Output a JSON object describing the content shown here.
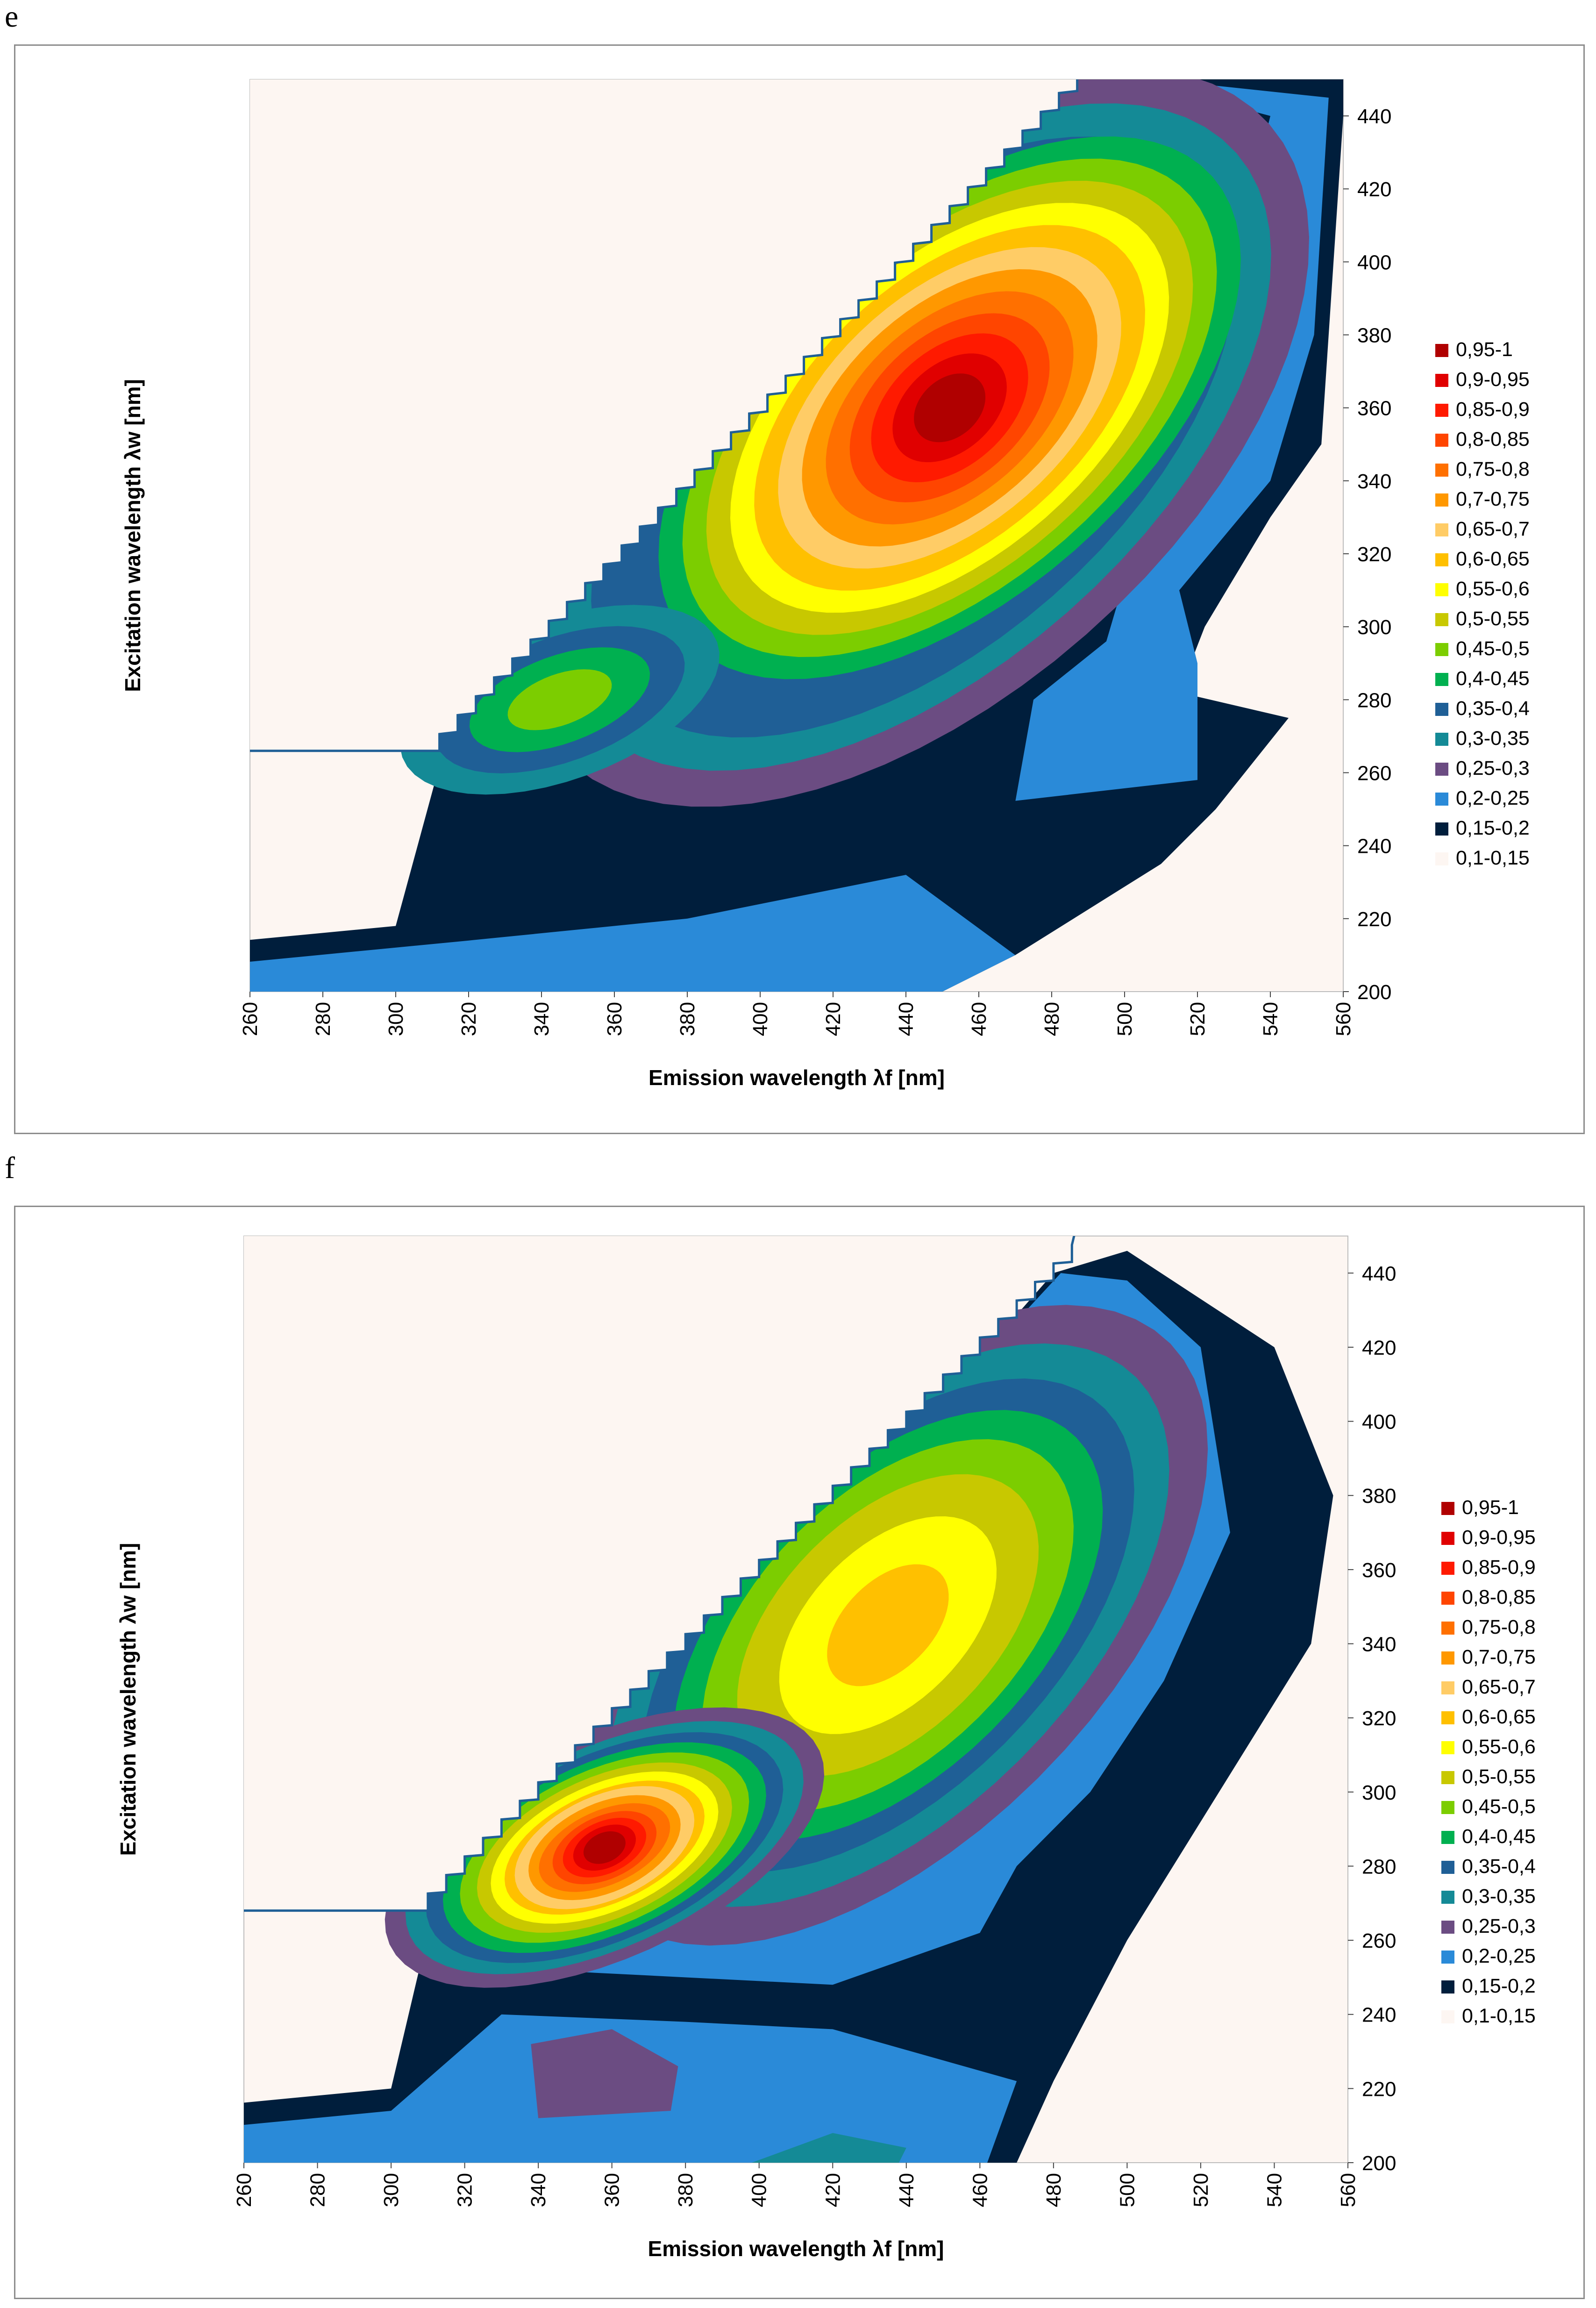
{
  "panels": [
    {
      "letter": "e"
    },
    {
      "letter": "f"
    }
  ],
  "legend_colors": {
    "0,95-1": "#b00000",
    "0,9-0,95": "#e00000",
    "0,85-0,9": "#ff1a00",
    "0,8-0,85": "#ff4500",
    "0,75-0,8": "#ff7000",
    "0,7-0,75": "#ff9800",
    "0,65-0,7": "#ffcc66",
    "0,6-0,65": "#ffc000",
    "0,55-0,6": "#ffff00",
    "0,5-0,55": "#c8c800",
    "0,45-0,5": "#7ccd00",
    "0,4-0,45": "#00b050",
    "0,35-0,4": "#1f5f96",
    "0,3-0,35": "#148a96",
    "0,25-0,3": "#6b4c82",
    "0,2-0,25": "#2a8ad8",
    "0,15-0,2": "#001e3c",
    "0,1-0,15": "#fdf6f2"
  },
  "chart_data": [
    {
      "type": "heatmap",
      "title": "e",
      "xlabel": "Emission wavelength λf [nm]",
      "ylabel": "Excitation wavelength λw [nm]",
      "xlim": [
        260,
        560
      ],
      "ylim": [
        200,
        450
      ],
      "x_ticks": [
        "260",
        "280",
        "300",
        "320",
        "340",
        "360",
        "380",
        "400",
        "420",
        "440",
        "460",
        "480",
        "500",
        "520",
        "540",
        "560"
      ],
      "y_ticks": [
        "200",
        "220",
        "240",
        "260",
        "280",
        "300",
        "320",
        "340",
        "360",
        "380",
        "400",
        "420",
        "440"
      ],
      "legend": [
        "0,95-1",
        "0,9-0,95",
        "0,85-0,9",
        "0,8-0,85",
        "0,75-0,8",
        "0,7-0,75",
        "0,65-0,7",
        "0,6-0,65",
        "0,55-0,6",
        "0,5-0,55",
        "0,45-0,5",
        "0,4-0,45",
        "0,35-0,4",
        "0,3-0,35",
        "0,25-0,3",
        "0,2-0,25",
        "0,15-0,2",
        "0,1-0,15"
      ],
      "legend_position": "right",
      "peaks": [
        {
          "emission": 450,
          "excitation": 362,
          "level": "0,95-1"
        },
        {
          "emission": 345,
          "excitation": 280,
          "level": "0,45-0,5"
        }
      ]
    },
    {
      "type": "heatmap",
      "title": "f",
      "xlabel": "Emission wavelength λf [nm]",
      "ylabel": "Excitation wavelength λw [nm]",
      "xlim": [
        260,
        560
      ],
      "ylim": [
        200,
        450
      ],
      "x_ticks": [
        "260",
        "280",
        "300",
        "320",
        "340",
        "360",
        "380",
        "400",
        "420",
        "440",
        "460",
        "480",
        "500",
        "520",
        "540",
        "560"
      ],
      "y_ticks": [
        "200",
        "220",
        "240",
        "260",
        "280",
        "300",
        "320",
        "340",
        "360",
        "380",
        "400",
        "420",
        "440"
      ],
      "legend": [
        "0,95-1",
        "0,9-0,95",
        "0,85-0,9",
        "0,8-0,85",
        "0,75-0,8",
        "0,7-0,75",
        "0,65-0,7",
        "0,6-0,65",
        "0,55-0,6",
        "0,5-0,55",
        "0,45-0,5",
        "0,4-0,45",
        "0,35-0,4",
        "0,3-0,35",
        "0,25-0,3",
        "0,2-0,25",
        "0,15-0,2",
        "0,1-0,15"
      ],
      "legend_position": "right",
      "peaks": [
        {
          "emission": 357,
          "excitation": 285,
          "level": "0,95-1"
        },
        {
          "emission": 432,
          "excitation": 345,
          "level": "0,6-0,65"
        }
      ]
    }
  ]
}
